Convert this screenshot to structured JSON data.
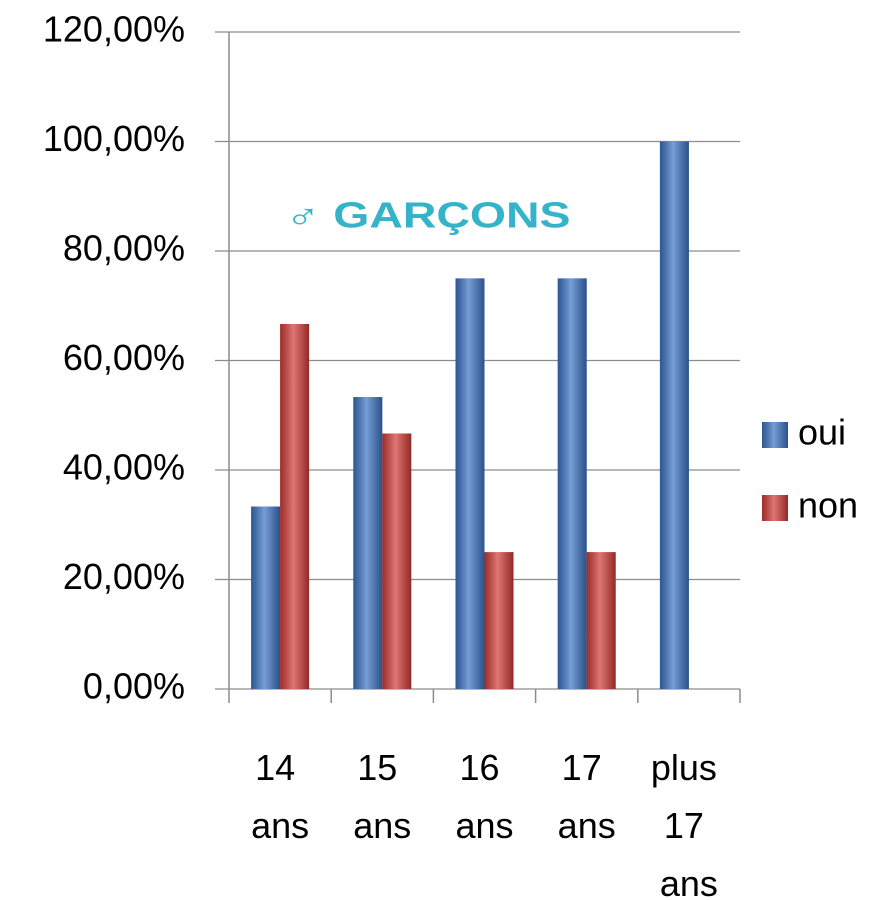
{
  "chart_data": {
    "type": "bar",
    "annotation": "♂ GARÇONS",
    "annotation_color": "#35b3c9",
    "categories": [
      "14 ans",
      "15 ans",
      "16 ans",
      "17 ans",
      "plus 17 ans"
    ],
    "series": [
      {
        "name": "oui",
        "color": "#3c74c4",
        "values": [
          33.33,
          53.33,
          75,
          75,
          100
        ]
      },
      {
        "name": "non",
        "color": "#d23c38",
        "values": [
          66.67,
          46.67,
          25,
          25,
          0
        ]
      }
    ],
    "ylim": [
      0,
      120
    ],
    "yticks": [
      {
        "value": 0,
        "label": "0,00%"
      },
      {
        "value": 20,
        "label": "20,00%"
      },
      {
        "value": 40,
        "label": "40,00%"
      },
      {
        "value": 60,
        "label": "60,00%"
      },
      {
        "value": 80,
        "label": "80,00%"
      },
      {
        "value": 100,
        "label": "100,00%"
      },
      {
        "value": 120,
        "label": "120,00%"
      }
    ],
    "grid": true,
    "legend": "right"
  }
}
